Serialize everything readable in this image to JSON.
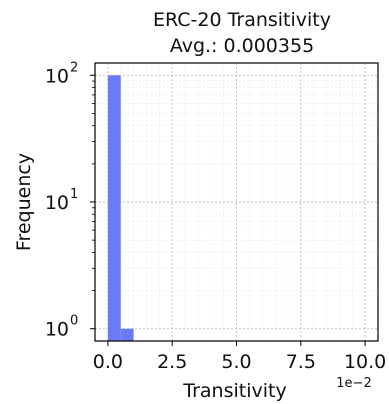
{
  "chart_data": {
    "type": "bar",
    "title_line1": "ERC-20 Transitivity",
    "title_line2": "Avg.: 0.000355",
    "xlabel": "Transitivity",
    "ylabel": "Frequency",
    "x_scale_label": "1e−2",
    "x_ticks": [
      "0.0",
      "2.5",
      "5.0",
      "7.5",
      "10.0"
    ],
    "x_tick_values": [
      0,
      2.5,
      5,
      7.5,
      10
    ],
    "xlim": [
      -0.5,
      10.5
    ],
    "y_scale": "log",
    "ylim": [
      0.8,
      125
    ],
    "y_ticks": [
      {
        "value": 1,
        "base": "10",
        "exp": "0"
      },
      {
        "value": 10,
        "base": "10",
        "exp": "1"
      },
      {
        "value": 100,
        "base": "10",
        "exp": "2"
      }
    ],
    "grid": true,
    "bar_color": "#6a7cf5",
    "bins": [
      {
        "x0": 0.0,
        "x1": 0.5,
        "value": 100
      },
      {
        "x0": 0.5,
        "x1": 1.0,
        "value": 1
      }
    ]
  }
}
